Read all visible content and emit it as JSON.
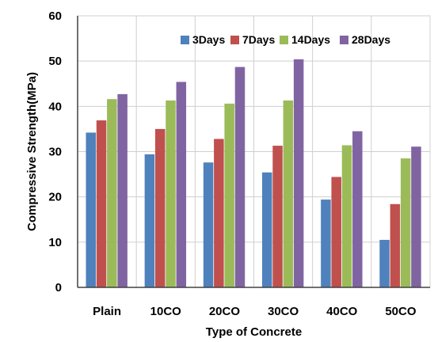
{
  "chart_data": {
    "type": "bar",
    "title": "",
    "xlabel": "Type of Concrete",
    "ylabel": "Compressive Strength(MPa)",
    "ylim": [
      0,
      60
    ],
    "yticks": [
      0,
      10,
      20,
      30,
      40,
      50,
      60
    ],
    "grid": "on",
    "legend_position": "top-right",
    "categories": [
      "Plain",
      "10CO",
      "20CO",
      "30CO",
      "40CO",
      "50CO"
    ],
    "series": [
      {
        "name": "3Days",
        "color": "#4F81BD",
        "values": [
          34.2,
          29.4,
          27.6,
          25.4,
          19.4,
          10.5
        ]
      },
      {
        "name": "7Days",
        "color": "#C0504D",
        "values": [
          36.9,
          35.0,
          32.8,
          31.3,
          24.4,
          18.4
        ]
      },
      {
        "name": "14Days",
        "color": "#9BBB59",
        "values": [
          41.6,
          41.3,
          40.6,
          41.3,
          31.4,
          28.5
        ]
      },
      {
        "name": "28Days",
        "color": "#8064A2",
        "values": [
          42.7,
          45.4,
          48.7,
          50.4,
          34.5,
          31.1
        ]
      }
    ]
  }
}
